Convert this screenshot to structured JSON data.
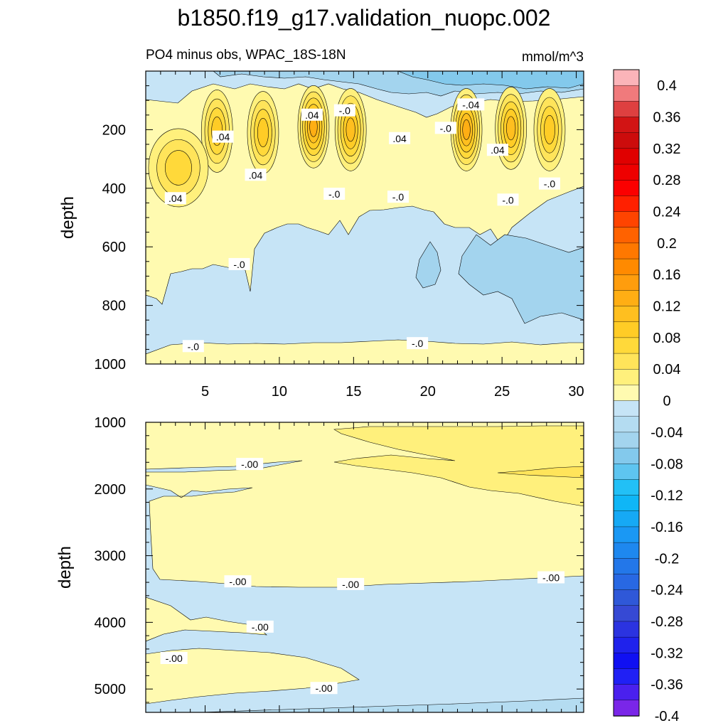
{
  "title": "b1850.f19_g17.validation_nuopc.002",
  "chart_data": [
    {
      "type": "contour",
      "panel": "upper",
      "left_title": "PO4 minus obs, WPAC_18S-18N",
      "right_title": "mmol/m^3",
      "ylabel": "depth",
      "xlabel": "",
      "xlim": [
        1,
        30.5
      ],
      "ylim": [
        1000,
        0
      ],
      "x_ticks": [
        5,
        10,
        15,
        20,
        25,
        30
      ],
      "x_tick_labels": [
        "5",
        "10",
        "15",
        "20",
        "25",
        "30"
      ],
      "y_ticks": [
        200,
        400,
        600,
        800,
        1000
      ],
      "y_tick_labels": [
        "200",
        "400",
        "600",
        "800",
        "1000"
      ],
      "lobes": [
        {
          "x": 5.8,
          "y": 205,
          "value": 0.08
        },
        {
          "x": 8.9,
          "y": 210,
          "value": 0.07
        },
        {
          "x": 12.3,
          "y": 190,
          "value": 0.11
        },
        {
          "x": 14.8,
          "y": 200,
          "value": 0.09
        },
        {
          "x": 22.6,
          "y": 200,
          "value": 0.11
        },
        {
          "x": 25.6,
          "y": 195,
          "value": 0.1
        },
        {
          "x": 28.2,
          "y": 200,
          "value": 0.07
        },
        {
          "x": 3.2,
          "y": 330,
          "value": 0.06
        }
      ],
      "contour_labels": [
        {
          "text": ".04",
          "x": 12.2,
          "y": 150
        },
        {
          "text": "-.0",
          "x": 14.4,
          "y": 135
        },
        {
          "text": "-.04",
          "x": 22.9,
          "y": 115
        },
        {
          "text": ".04",
          "x": 6.2,
          "y": 225
        },
        {
          "text": ".04",
          "x": 18.1,
          "y": 230
        },
        {
          "text": "-.0",
          "x": 21.2,
          "y": 195
        },
        {
          "text": ".04",
          "x": 24.7,
          "y": 270
        },
        {
          "text": ".04",
          "x": 8.4,
          "y": 355
        },
        {
          "text": ".04",
          "x": 3.0,
          "y": 435
        },
        {
          "text": "-.0",
          "x": 13.7,
          "y": 420
        },
        {
          "text": "-.0",
          "x": 18.0,
          "y": 430
        },
        {
          "text": "-.0",
          "x": 25.4,
          "y": 440
        },
        {
          "text": "-.0",
          "x": 28.2,
          "y": 385
        },
        {
          "text": "-.0",
          "x": 7.3,
          "y": 660
        },
        {
          "text": "-.0",
          "x": 4.2,
          "y": 940
        },
        {
          "text": "-.0",
          "x": 19.3,
          "y": 930
        }
      ]
    },
    {
      "type": "contour",
      "panel": "lower",
      "ylabel": "depth",
      "xlabel": "",
      "xlim": [
        1,
        30.5
      ],
      "ylim": [
        5350,
        1000
      ],
      "y_ticks": [
        1000,
        2000,
        3000,
        4000,
        5000
      ],
      "y_tick_labels": [
        "1000",
        "2000",
        "3000",
        "4000",
        "5000"
      ],
      "contour_labels": [
        {
          "text": "-.00",
          "x": 8.0,
          "y": 1630
        },
        {
          "text": "-.00",
          "x": 7.2,
          "y": 3390
        },
        {
          "text": "-.00",
          "x": 14.8,
          "y": 3430
        },
        {
          "text": "-.00",
          "x": 28.3,
          "y": 3330
        },
        {
          "text": "-.00",
          "x": 8.7,
          "y": 4070
        },
        {
          "text": "-.00",
          "x": 2.9,
          "y": 4540
        },
        {
          "text": "-.00",
          "x": 13.0,
          "y": 4990
        }
      ]
    }
  ],
  "colorbar": {
    "labels": [
      "0.4",
      "0.36",
      "0.32",
      "0.28",
      "0.24",
      "0.2",
      "0.16",
      "0.12",
      "0.08",
      "0.04",
      "0",
      "-0.04",
      "-0.08",
      "-0.12",
      "-0.16",
      "-0.2",
      "-0.24",
      "-0.28",
      "-0.32",
      "-0.36",
      "-0.4"
    ],
    "colors": [
      "#fbb4b9",
      "#f07a7c",
      "#de4040",
      "#d21414",
      "#cc0c0c",
      "#e00000",
      "#ee0000",
      "#fb0000",
      "#ff2000",
      "#ff4400",
      "#ff6200",
      "#ff7800",
      "#ff8a00",
      "#ff9d0d",
      "#ffae14",
      "#ffbf1f",
      "#ffcc26",
      "#ffd93a",
      "#ffe45a",
      "#fff07c",
      "#fffab0",
      "#c6e4f6",
      "#b4dcf1",
      "#a3d4ee",
      "#83c9ec",
      "#5ec5f0",
      "#22c0f6",
      "#0fb6f6",
      "#16a9f5",
      "#1a98f4",
      "#1e88ef",
      "#2377e9",
      "#2868e3",
      "#2f58d8",
      "#3649d4",
      "#2b33e0",
      "#1f22ec",
      "#1010f2",
      "#2020f5",
      "#4a20ee",
      "#7a26e8"
    ]
  }
}
